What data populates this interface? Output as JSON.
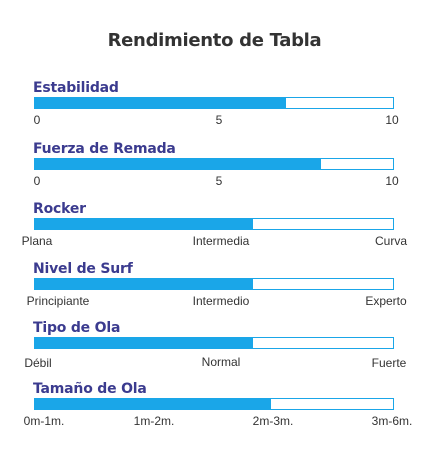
{
  "title": "Rendimiento de Tabla",
  "accent_color": "#1aa6e8",
  "label_color": "#3b3b8f",
  "ratings": [
    {
      "label": "Estabilidad",
      "value": 0.7,
      "ticks": [
        "0",
        "5",
        "10"
      ]
    },
    {
      "label": "Fuerza de Remada",
      "value": 0.8,
      "ticks": [
        "0",
        "5",
        "10"
      ]
    },
    {
      "label": "Rocker",
      "value": 0.61,
      "ticks": [
        "Plana",
        "Intermedia",
        "Curva"
      ]
    },
    {
      "label": "Nivel de Surf",
      "value": 0.61,
      "ticks": [
        "Principiante",
        "Intermedio",
        "Experto"
      ]
    },
    {
      "label": "Tipo de Ola",
      "value": 0.61,
      "ticks": [
        "Débil",
        "Normal",
        "Fuerte"
      ]
    },
    {
      "label": "Tamaño de Ola",
      "value": 0.66,
      "ticks": [
        "0m-1m.",
        "1m-2m.",
        "2m-3m.",
        "3m-6m."
      ]
    }
  ]
}
